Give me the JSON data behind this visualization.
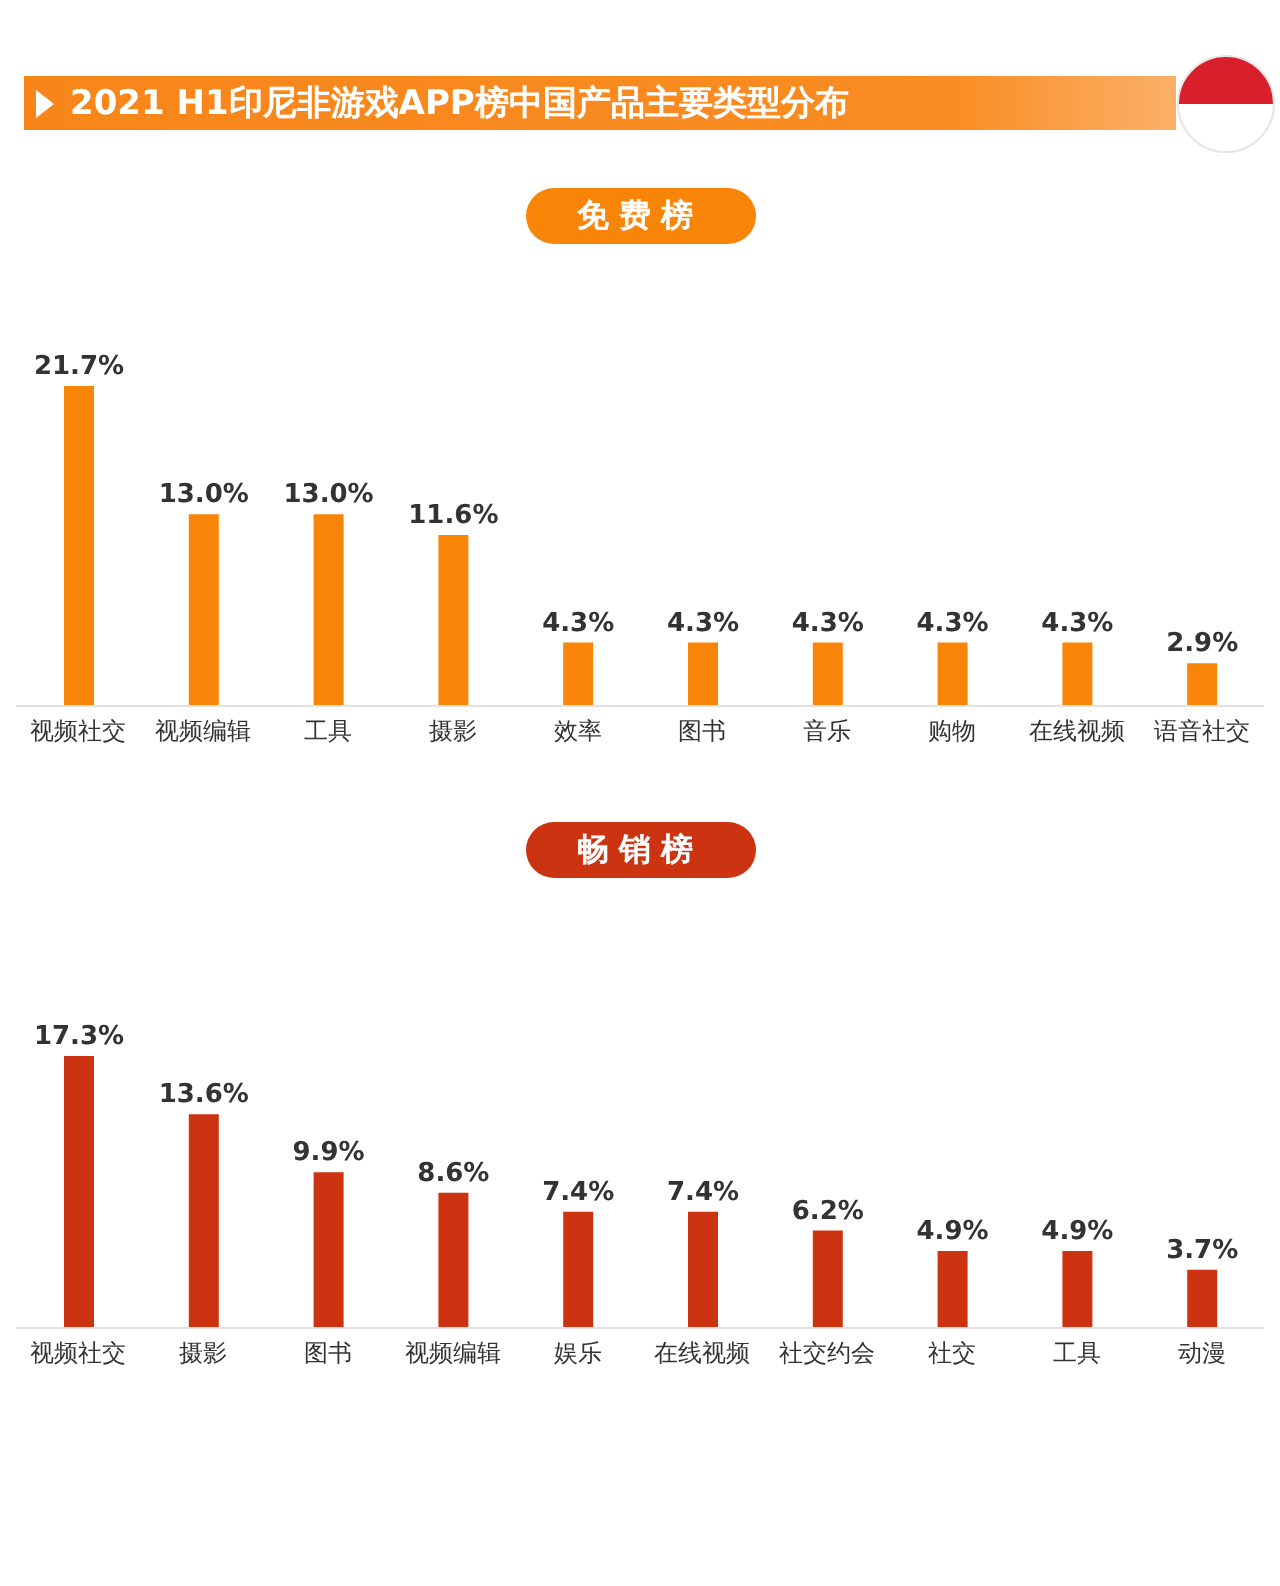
{
  "chart_data": [
    {
      "type": "bar",
      "title": "2021 H1印尼非游戏APP榜中国产品主要类型分布",
      "subtitle": "免费榜",
      "categories": [
        "视频社交",
        "视频编辑",
        "工具",
        "摄影",
        "效率",
        "图书",
        "音乐",
        "购物",
        "在线视频",
        "语音社交"
      ],
      "values": [
        21.7,
        13.0,
        13.0,
        11.6,
        4.3,
        4.3,
        4.3,
        4.3,
        4.3,
        2.9
      ],
      "value_labels": [
        "21.7%",
        "13.0%",
        "13.0%",
        "11.6%",
        "4.3%",
        "4.3%",
        "4.3%",
        "4.3%",
        "4.3%",
        "2.9%"
      ],
      "color": "#f98508"
    },
    {
      "type": "bar",
      "subtitle": "畅销榜",
      "categories": [
        "视频社交",
        "摄影",
        "图书",
        "视频编辑",
        "娱乐",
        "在线视频",
        "社交约会",
        "社交",
        "工具",
        "动漫"
      ],
      "values": [
        17.3,
        13.6,
        9.9,
        8.6,
        7.4,
        7.4,
        6.2,
        4.9,
        4.9,
        3.7
      ],
      "value_labels": [
        "17.3%",
        "13.6%",
        "9.9%",
        "8.6%",
        "7.4%",
        "7.4%",
        "6.2%",
        "4.9%",
        "4.9%",
        "3.7%"
      ],
      "color": "#cc3311"
    }
  ]
}
